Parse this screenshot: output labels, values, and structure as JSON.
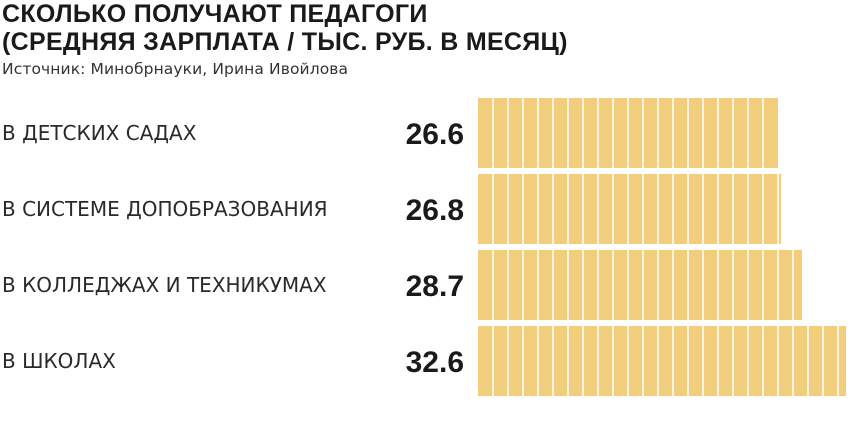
{
  "header": {
    "title_line1": "СКОЛЬКО ПОЛУЧАЮТ ПЕДАГОГИ",
    "title_line2": "(СРЕДНЯЯ ЗАРПЛАТА / ТЫС. РУБ. В МЕСЯЦ)",
    "source": "Источник: Минобрнауки, Ирина Ивойлова"
  },
  "colors": {
    "bar_fill": "#f2cd7b",
    "bar_divider": "#ffffff"
  },
  "chart_data": {
    "type": "bar",
    "orientation": "horizontal",
    "title": "СКОЛЬКО ПОЛУЧАЮТ ПЕДАГОГИ (СРЕДНЯЯ ЗАРПЛАТА / ТЫС. РУБ. В МЕСЯЦ)",
    "categories": [
      "В ДЕТСКИХ САДАХ",
      "В СИСТЕМЕ ДОПОБРАЗОВАНИЯ",
      "В КОЛЛЕДЖАХ И ТЕХНИКУМАХ",
      "В ШКОЛАХ"
    ],
    "values": [
      26.6,
      26.8,
      28.7,
      32.6
    ],
    "value_labels": [
      "26.6",
      "26.8",
      "28.7",
      "32.6"
    ],
    "xlim": [
      0,
      32.6
    ],
    "xlabel": "",
    "ylabel": "",
    "grid": false,
    "legend": "none"
  }
}
